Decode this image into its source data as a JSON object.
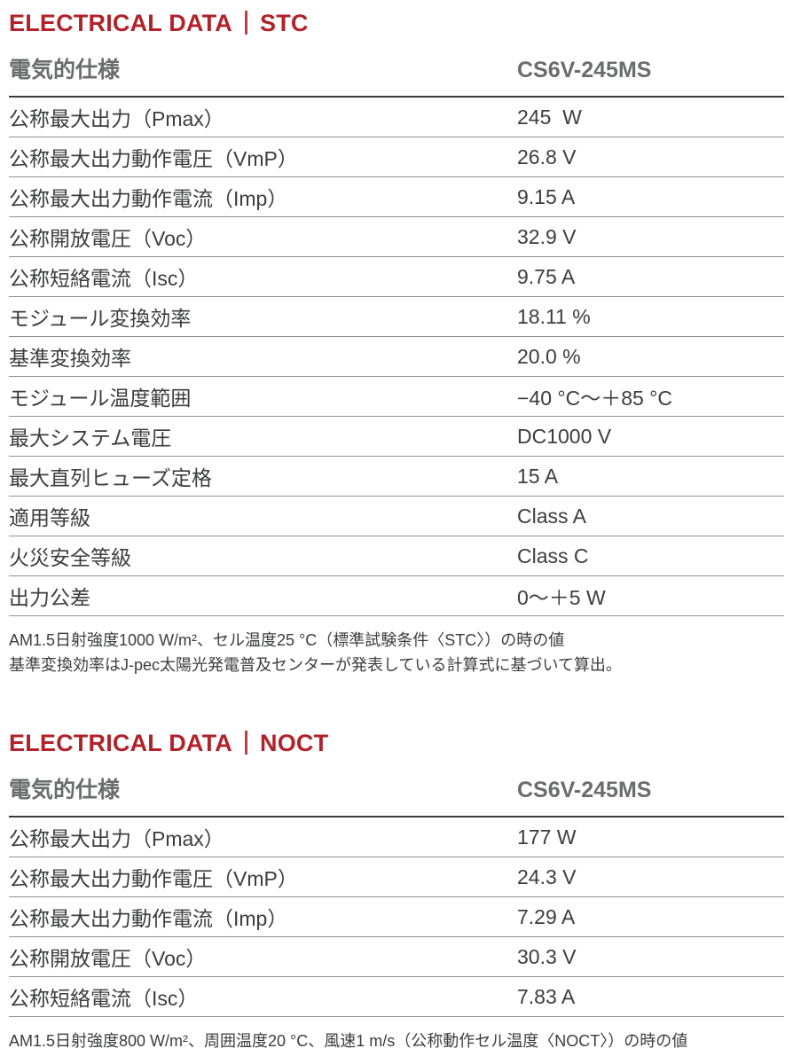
{
  "colors": {
    "accent_red": "#B2222A",
    "header_gray": "#6B6C6E",
    "body_text": "#3C3D3F"
  },
  "sections": [
    {
      "title_main": "ELECTRICAL DATA",
      "title_sub": "STC",
      "header": {
        "label": "電気的仕様",
        "model": "CS6V-245MS"
      },
      "rows": [
        {
          "label": "公称最大出力（Pmax）",
          "value": "245  W"
        },
        {
          "label": "公称最大出力動作電圧（VmP）",
          "value": "26.8 V"
        },
        {
          "label": "公称最大出力動作電流（Imp）",
          "value": "9.15 A"
        },
        {
          "label": "公称開放電圧（Voc）",
          "value": "32.9 V"
        },
        {
          "label": "公称短絡電流（Isc）",
          "value": "9.75 A"
        },
        {
          "label": "モジュール変換効率",
          "value": "18.11 %"
        },
        {
          "label": "基準変換効率",
          "value": "20.0 %"
        },
        {
          "label": "モジュール温度範囲",
          "value": "−40 °C〜＋85 °C"
        },
        {
          "label": "最大システム電圧",
          "value": "DC1000 V"
        },
        {
          "label": "最大直列ヒューズ定格",
          "value": "15 A"
        },
        {
          "label": "適用等級",
          "value": "Class A"
        },
        {
          "label": "火災安全等級",
          "value": "Class C"
        },
        {
          "label": "出力公差",
          "value": "0〜＋5 W"
        }
      ],
      "footnotes": [
        "AM1.5日射強度1000 W/m²、セル温度25 °C（標準試験条件〈STC〉）の時の値",
        "基準変換効率はJ-pec太陽光発電普及センターが発表している計算式に基づいて算出。"
      ]
    },
    {
      "title_main": "ELECTRICAL DATA",
      "title_sub": "NOCT",
      "header": {
        "label": "電気的仕様",
        "model": "CS6V-245MS"
      },
      "rows": [
        {
          "label": "公称最大出力（Pmax）",
          "value": "177 W"
        },
        {
          "label": "公称最大出力動作電圧（VmP）",
          "value": "24.3 V"
        },
        {
          "label": "公称最大出力動作電流（Imp）",
          "value": "7.29 A"
        },
        {
          "label": "公称開放電圧（Voc）",
          "value": "30.3 V"
        },
        {
          "label": "公称短絡電流（Isc）",
          "value": "7.83 A"
        }
      ],
      "footnotes": [
        "AM1.5日射強度800 W/m²、周囲温度20 °C、風速1 m/s（公称動作セル温度〈NOCT〉）の時の値"
      ]
    }
  ]
}
